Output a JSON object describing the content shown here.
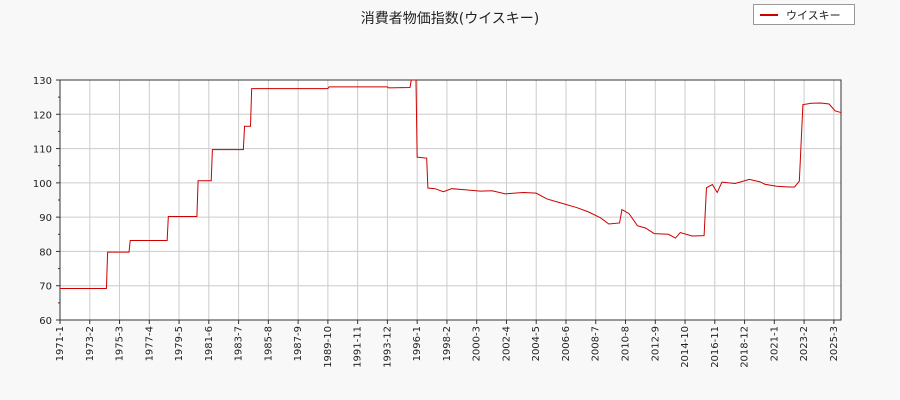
{
  "chart_data": {
    "type": "line",
    "title": "消費者物価指数(ウイスキー)",
    "legend": {
      "placement": "top-right",
      "entries": [
        "ウイスキー"
      ]
    },
    "grid": true,
    "xlabel": "",
    "ylabel": "",
    "ylim": [
      60,
      130
    ],
    "y_ticks": [
      60,
      70,
      80,
      90,
      100,
      110,
      120,
      130
    ],
    "x_range": [
      "1971-01",
      "2025-09"
    ],
    "x_tick_labels": [
      "1971-1",
      "1973-2",
      "1975-3",
      "1977-4",
      "1979-5",
      "1981-6",
      "1983-7",
      "1985-8",
      "1987-9",
      "1989-10",
      "1991-11",
      "1993-12",
      "1996-1",
      "1998-2",
      "2000-3",
      "2002-4",
      "2004-5",
      "2006-6",
      "2008-7",
      "2010-8",
      "2012-9",
      "2014-10",
      "2016-11",
      "2018-12",
      "2021-1",
      "2023-2",
      "2025-3"
    ],
    "series": [
      {
        "name": "ウイスキー",
        "color": "#cc0000",
        "points": [
          [
            "1971-01",
            69.2
          ],
          [
            "1974-04",
            69.2
          ],
          [
            "1974-05",
            79.8
          ],
          [
            "1975-11",
            79.8
          ],
          [
            "1975-12",
            83.2
          ],
          [
            "1978-07",
            83.2
          ],
          [
            "1978-08",
            90.2
          ],
          [
            "1980-08",
            90.2
          ],
          [
            "1980-09",
            100.6
          ],
          [
            "1981-08",
            100.6
          ],
          [
            "1981-09",
            109.7
          ],
          [
            "1983-11",
            109.7
          ],
          [
            "1983-12",
            116.5
          ],
          [
            "1984-05",
            116.5
          ],
          [
            "1984-06",
            127.5
          ],
          [
            "1989-10",
            127.5
          ],
          [
            "1989-11",
            128.0
          ],
          [
            "1993-12",
            128.0
          ],
          [
            "1994-01",
            127.7
          ],
          [
            "1995-07",
            127.8
          ],
          [
            "1995-08",
            130.0
          ],
          [
            "1995-12",
            130.0
          ],
          [
            "1996-01",
            107.5
          ],
          [
            "1996-09",
            107.2
          ],
          [
            "1996-10",
            98.5
          ],
          [
            "1997-04",
            98.3
          ],
          [
            "1997-11",
            97.4
          ],
          [
            "1998-06",
            98.3
          ],
          [
            "1999-05",
            98.0
          ],
          [
            "2000-06",
            97.6
          ],
          [
            "2001-04",
            97.7
          ],
          [
            "2002-03",
            96.8
          ],
          [
            "2003-06",
            97.2
          ],
          [
            "2004-05",
            97.0
          ],
          [
            "2005-02",
            95.3
          ],
          [
            "2006-01",
            94.2
          ],
          [
            "2007-03",
            92.8
          ],
          [
            "2008-01",
            91.5
          ],
          [
            "2008-11",
            89.8
          ],
          [
            "2009-06",
            88.0
          ],
          [
            "2010-03",
            88.3
          ],
          [
            "2010-05",
            92.2
          ],
          [
            "2010-11",
            91.0
          ],
          [
            "2011-06",
            87.5
          ],
          [
            "2012-01",
            86.8
          ],
          [
            "2012-08",
            85.2
          ],
          [
            "2013-08",
            85.0
          ],
          [
            "2014-02",
            83.9
          ],
          [
            "2014-06",
            85.5
          ],
          [
            "2015-04",
            84.5
          ],
          [
            "2016-02",
            84.6
          ],
          [
            "2016-04",
            98.6
          ],
          [
            "2016-09",
            99.5
          ],
          [
            "2017-01",
            97.2
          ],
          [
            "2017-05",
            100.2
          ],
          [
            "2018-04",
            99.8
          ],
          [
            "2019-04",
            101.0
          ],
          [
            "2020-01",
            100.3
          ],
          [
            "2020-05",
            99.6
          ],
          [
            "2021-03",
            99.0
          ],
          [
            "2022-01",
            98.8
          ],
          [
            "2022-06",
            98.8
          ],
          [
            "2022-10",
            100.5
          ],
          [
            "2023-01",
            122.8
          ],
          [
            "2023-08",
            123.2
          ],
          [
            "2024-04",
            123.3
          ],
          [
            "2024-11",
            123.0
          ],
          [
            "2025-04",
            121.0
          ],
          [
            "2025-09",
            120.5
          ]
        ]
      }
    ]
  }
}
